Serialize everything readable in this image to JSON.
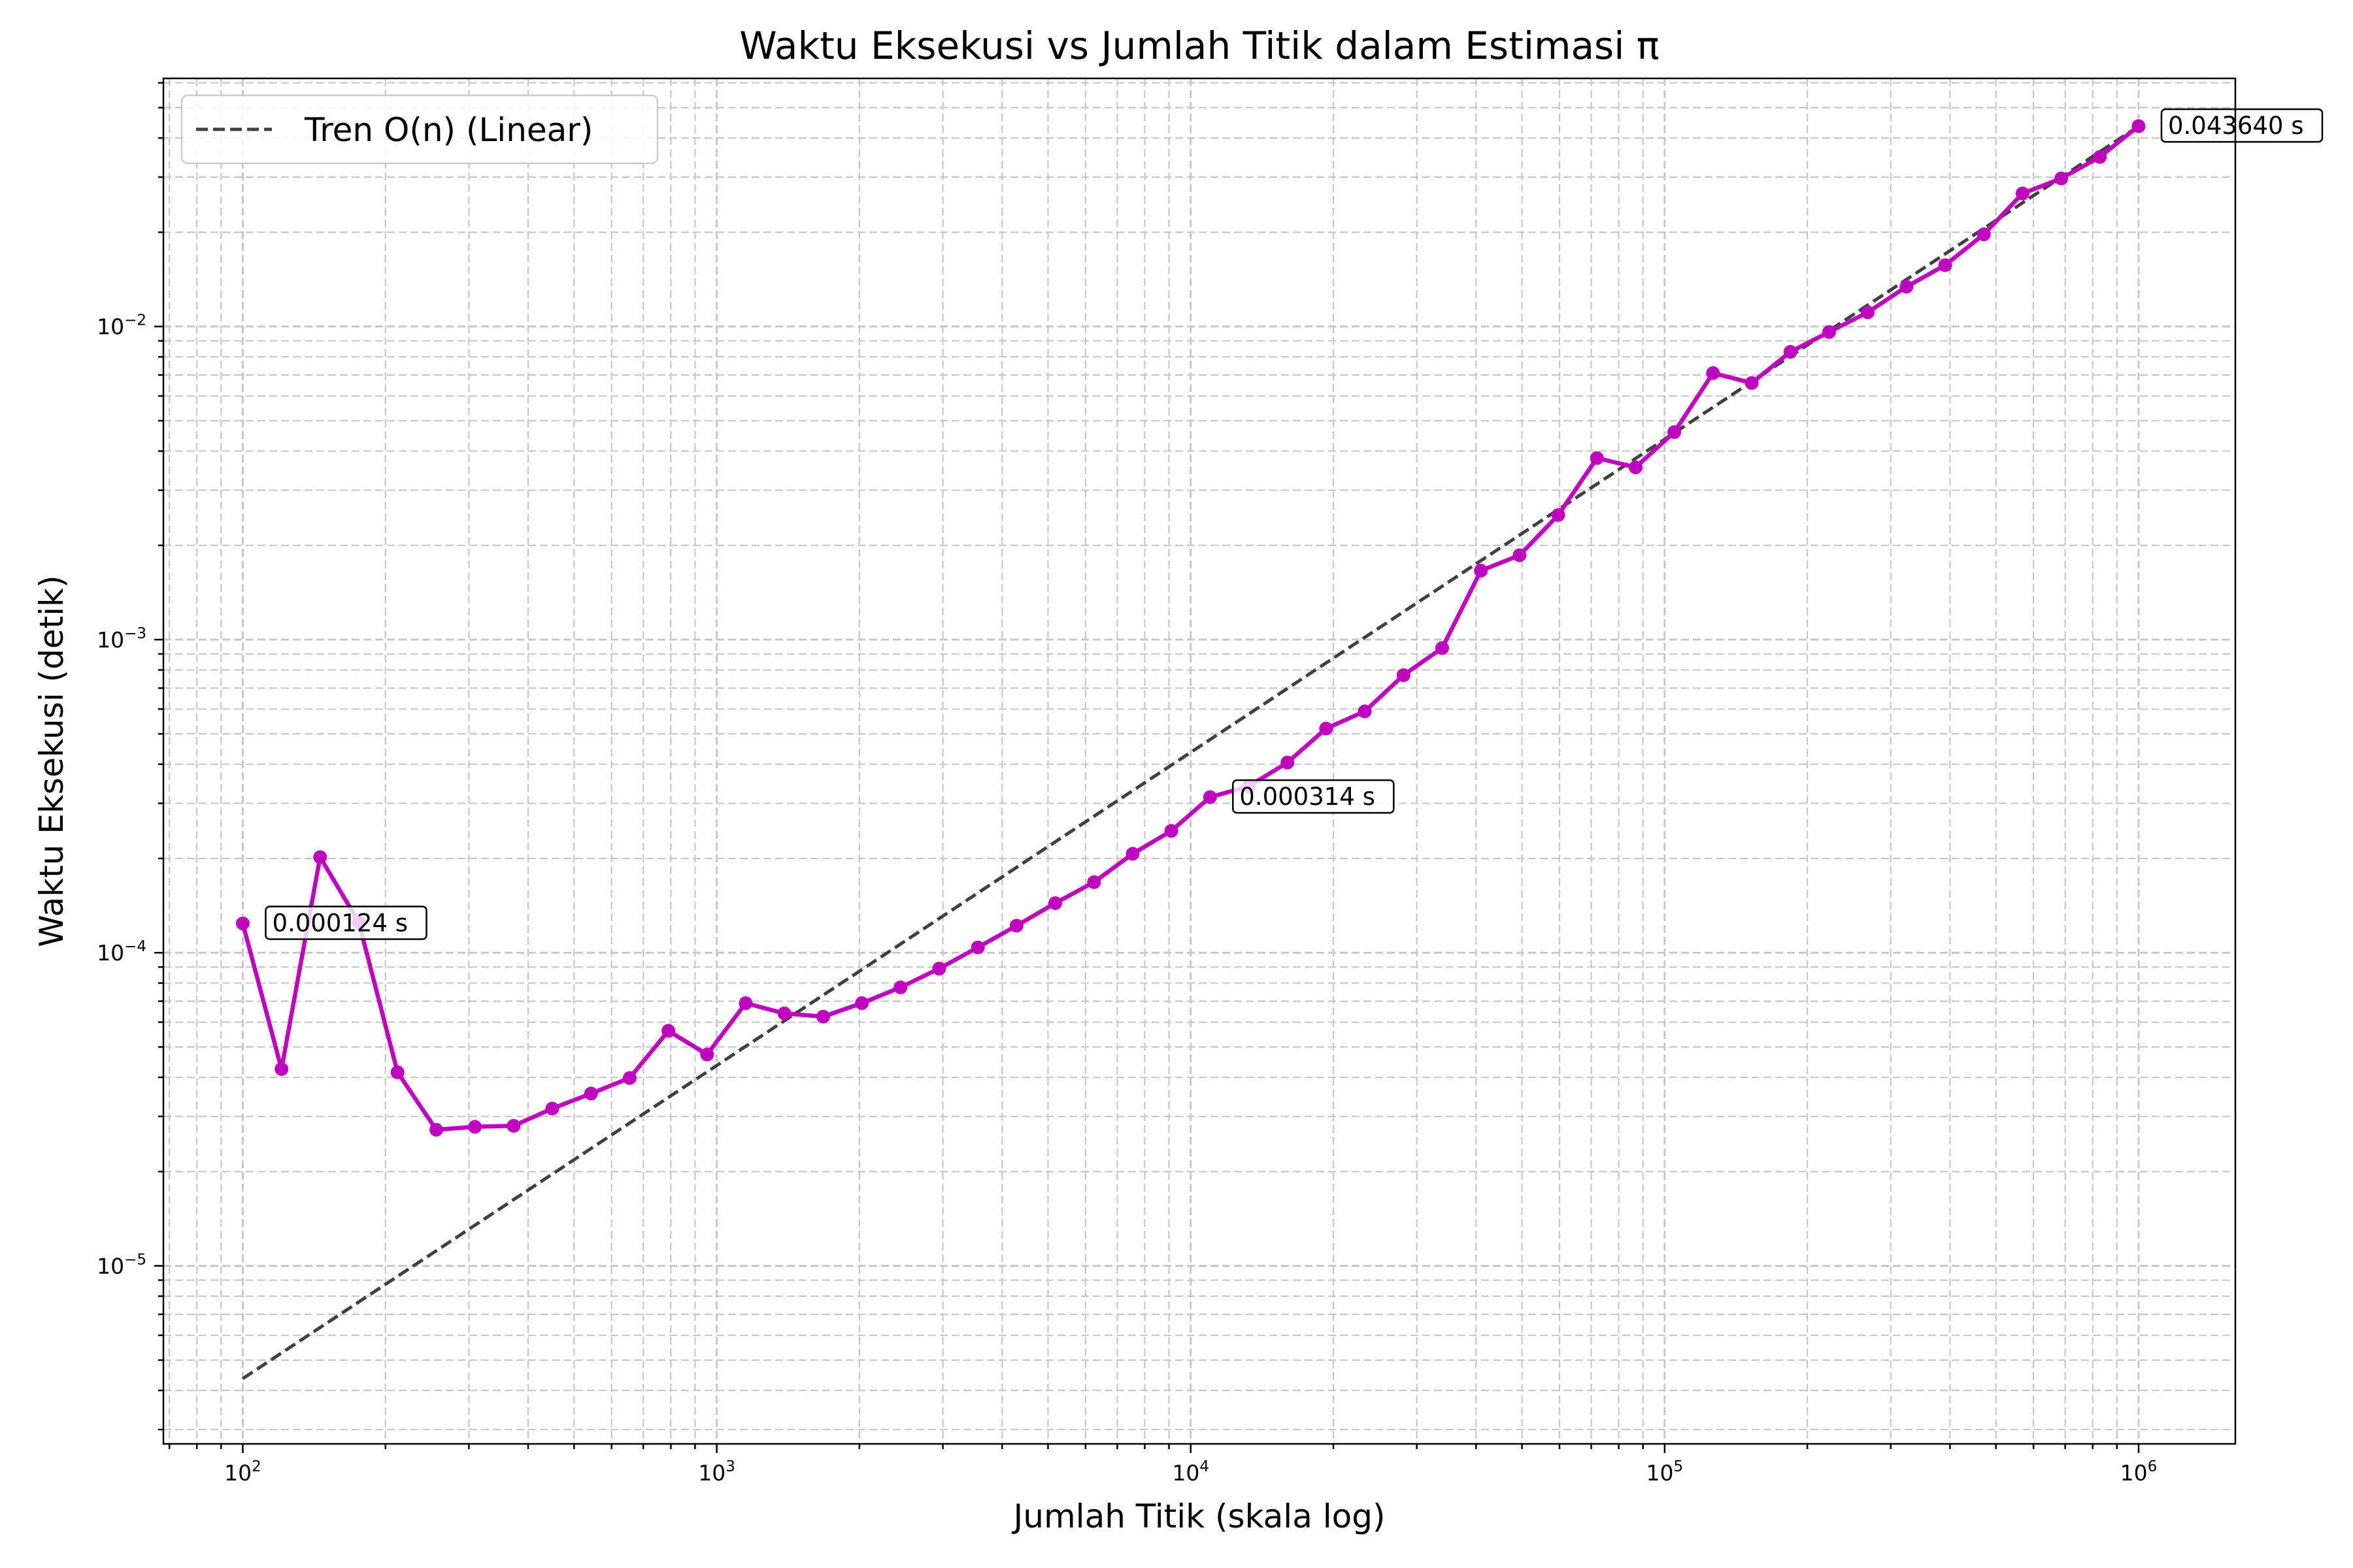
{
  "chart_data": {
    "type": "line",
    "title": "Waktu Eksekusi vs Jumlah Titik dalam Estimasi π",
    "xlabel": "Jumlah Titik (skala log)",
    "ylabel": "Waktu Eksekusi (detik)",
    "xscale": "log",
    "yscale": "log",
    "xlim": [
      68,
      1600000
    ],
    "ylim": [
      2.7e-06,
      0.062
    ],
    "grid": true,
    "legend_position": "top-left",
    "colors": {
      "series": "#bf00bf",
      "trend": "#404040",
      "grid": "#c8c8c8"
    },
    "x_ticks": [
      {
        "value": 100,
        "base": "10",
        "exp": "2"
      },
      {
        "value": 1000,
        "base": "10",
        "exp": "3"
      },
      {
        "value": 10000,
        "base": "10",
        "exp": "4"
      },
      {
        "value": 100000,
        "base": "10",
        "exp": "5"
      },
      {
        "value": 1000000,
        "base": "10",
        "exp": "6"
      }
    ],
    "y_ticks": [
      {
        "value": 1e-05,
        "base": "10",
        "exp": "−5"
      },
      {
        "value": 0.0001,
        "base": "10",
        "exp": "−4"
      },
      {
        "value": 0.001,
        "base": "10",
        "exp": "−3"
      },
      {
        "value": 0.01,
        "base": "10",
        "exp": "−2"
      }
    ],
    "series": [
      {
        "name": "",
        "style": "solid-markers",
        "x": [
          100,
          120.7,
          145.6,
          175.7,
          212.1,
          256,
          308.9,
          372.8,
          449.9,
          543,
          655.1,
          790.6,
          954.1,
          1151,
          1389,
          1677,
          2024,
          2442,
          2947,
          3556,
          4292,
          5179,
          6251,
          7543,
          9103,
          10985,
          13257,
          15999,
          19307,
          23300,
          28118,
          33932,
          40949,
          49417,
          59636,
          71969,
          86851,
          104811,
          126486,
          152642,
          184207,
          222300,
          268270,
          323746,
          390694,
          471487,
          568987,
          686649,
          828643,
          1000000
        ],
        "y": [
          0.000124,
          4.25e-05,
          0.000202,
          0.000125,
          4.15e-05,
          2.72e-05,
          2.78e-05,
          2.8e-05,
          3.18e-05,
          3.55e-05,
          3.98e-05,
          5.63e-05,
          4.73e-05,
          6.9e-05,
          6.4e-05,
          6.25e-05,
          6.9e-05,
          7.75e-05,
          8.9e-05,
          0.000104,
          0.000122,
          0.000144,
          0.000168,
          0.000207,
          0.000245,
          0.000314,
          0.00034,
          0.000405,
          0.00052,
          0.00059,
          0.00077,
          0.00094,
          0.00166,
          0.00186,
          0.0025,
          0.0038,
          0.00355,
          0.0046,
          0.0071,
          0.0066,
          0.0083,
          0.0096,
          0.0111,
          0.0134,
          0.0157,
          0.0197,
          0.0266,
          0.0297,
          0.0348,
          0.04364
        ]
      },
      {
        "name": "Tren O(n) (Linear)",
        "style": "dashed",
        "x": [
          100,
          1000000
        ],
        "y": [
          4.364e-06,
          0.04364
        ]
      }
    ],
    "annotations": [
      {
        "text": "0.000124 s",
        "x": 100,
        "y": 0.000124
      },
      {
        "text": "0.000314 s",
        "x": 10985,
        "y": 0.000314
      },
      {
        "text": "0.043640 s",
        "x": 1000000,
        "y": 0.04364
      }
    ]
  }
}
